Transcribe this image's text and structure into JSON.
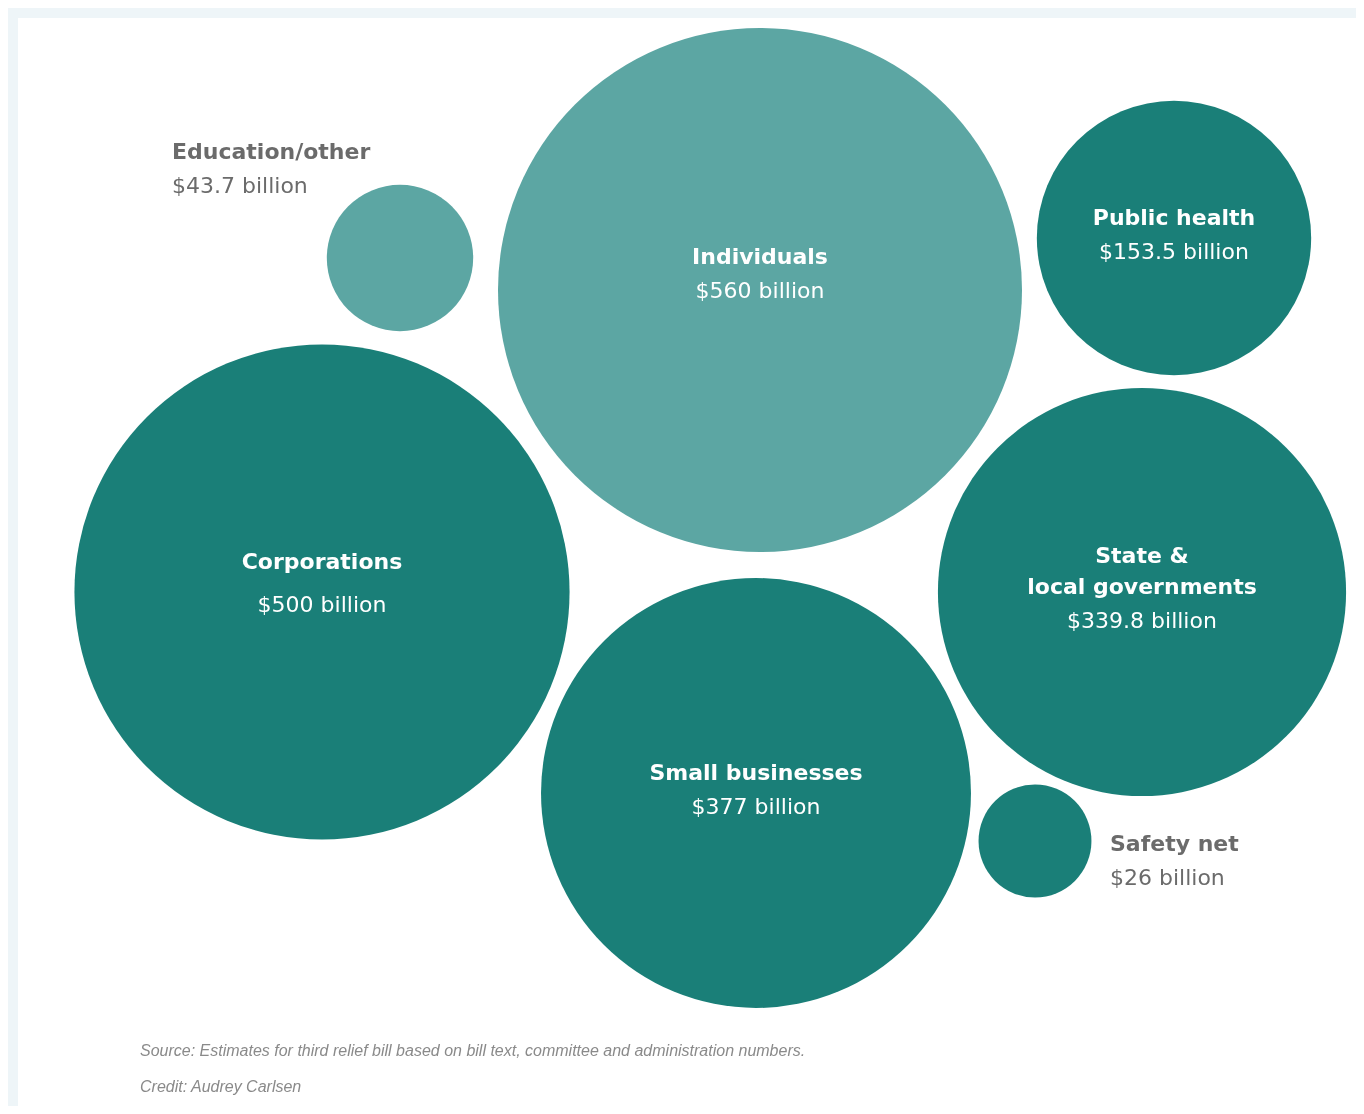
{
  "chart_data": {
    "type": "other",
    "categories": [
      "Individuals",
      "Corporations",
      "Public health",
      "State & local governments",
      "Small businesses",
      "Safety net",
      "Education/other"
    ],
    "values": [
      560,
      500,
      153.5,
      339.8,
      377,
      26,
      43.7
    ],
    "value_labels": [
      "$560 billion",
      "$500 billion",
      "$153.5 billion",
      "$339.8 billion",
      "$377 billion",
      "$26 billion",
      "$43.7 billion"
    ],
    "colors": [
      "#5ca6a3",
      "#1a7f78",
      "#1a7f78",
      "#1a7f78",
      "#1a7f78",
      "#1a7f78",
      "#5ca6a3"
    ],
    "annotations": [
      "Source: Estimates for third relief bill based on bill text, committee and administration numbers.",
      "Credit: Audrey Carlsen"
    ]
  }
}
